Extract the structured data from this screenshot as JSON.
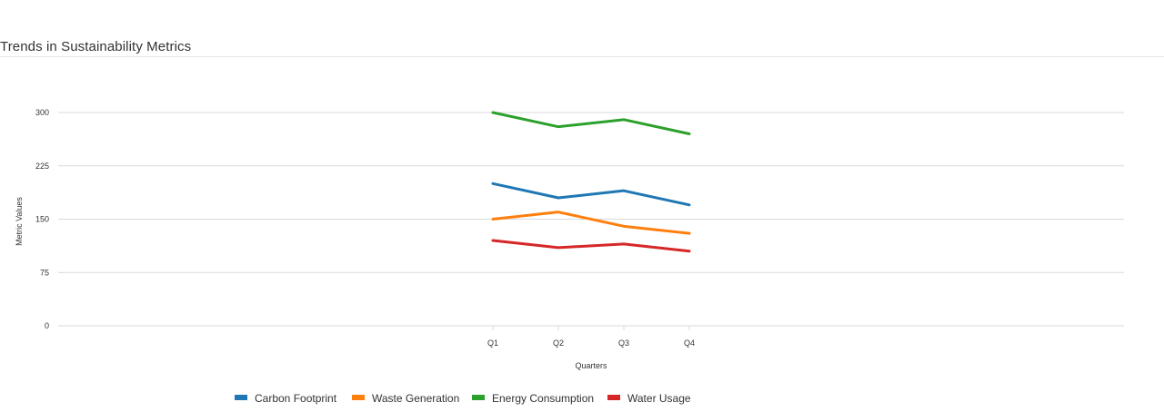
{
  "page": {
    "title": "Trends in Sustainability Metrics"
  },
  "chart_data": {
    "type": "line",
    "title": "Trends in Sustainability Metrics",
    "xlabel": "Quarters",
    "ylabel": "Metric Values",
    "categories": [
      "Q1",
      "Q2",
      "Q3",
      "Q4"
    ],
    "ylim": [
      0,
      300
    ],
    "yticks": [
      0,
      75,
      150,
      225,
      300
    ],
    "grid": true,
    "legend_position": "bottom",
    "series": [
      {
        "name": "Carbon Footprint",
        "color": "#1f77b4",
        "values": [
          200,
          180,
          190,
          170
        ]
      },
      {
        "name": "Waste Generation",
        "color": "#ff7f0e",
        "values": [
          150,
          160,
          140,
          130
        ]
      },
      {
        "name": "Energy Consumption",
        "color": "#2ca02c",
        "values": [
          300,
          280,
          290,
          270
        ]
      },
      {
        "name": "Water Usage",
        "color": "#d62728",
        "values": [
          120,
          110,
          115,
          105
        ]
      }
    ]
  }
}
